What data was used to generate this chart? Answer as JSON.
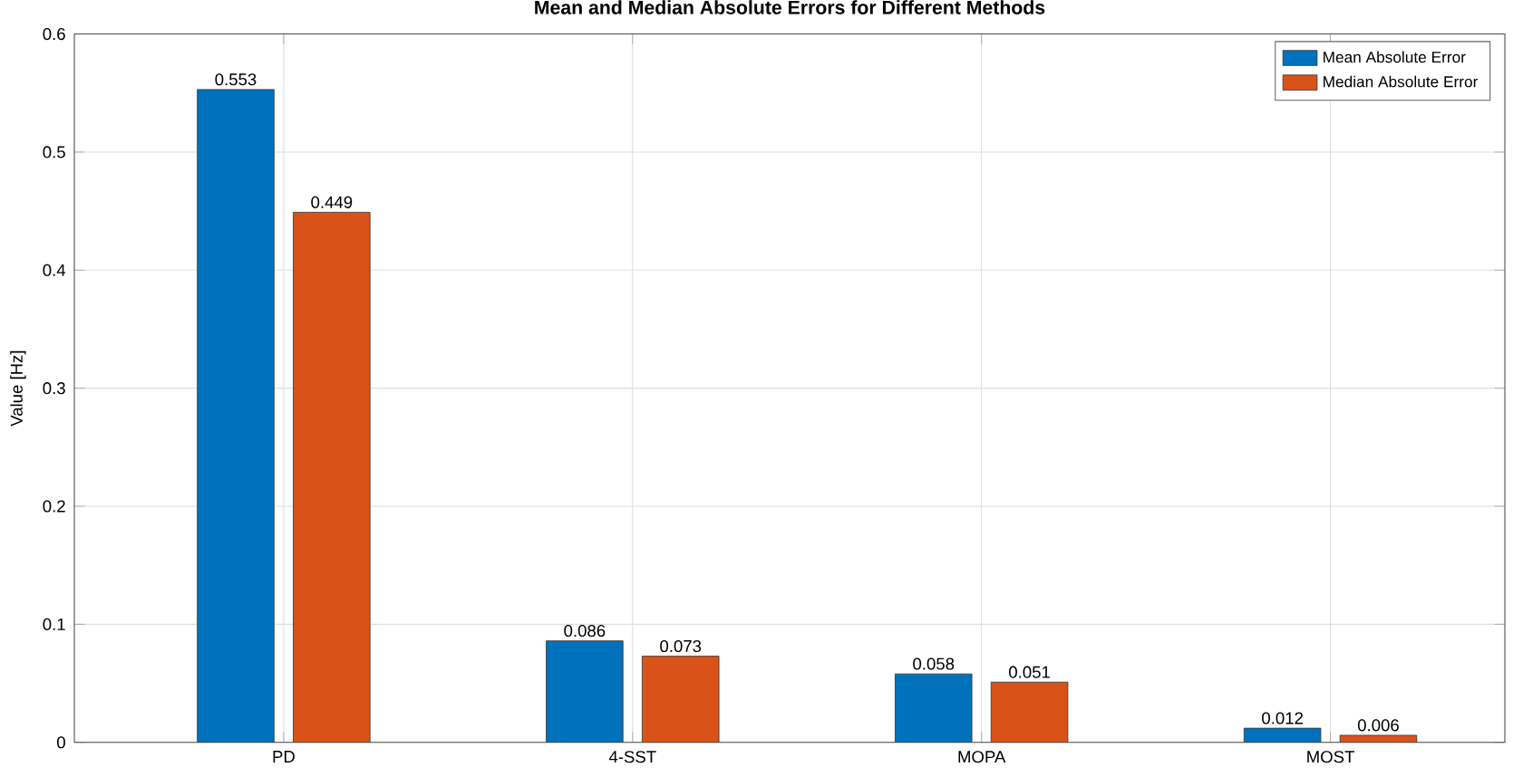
{
  "chart_data": {
    "type": "bar",
    "title": "Mean and Median Absolute Errors for Different Methods",
    "ylabel": "Value [Hz]",
    "categories": [
      "PD",
      "4-SST",
      "MOPA",
      "MOST"
    ],
    "series": [
      {
        "name": "Mean Absolute Error",
        "color": "#0072bd",
        "values": [
          0.553,
          0.086,
          0.058,
          0.012
        ]
      },
      {
        "name": "Median Absolute Error",
        "color": "#d95319",
        "values": [
          0.449,
          0.073,
          0.051,
          0.006
        ]
      }
    ],
    "ylim": [
      0,
      0.6
    ],
    "yticks": [
      0,
      0.1,
      0.2,
      0.3,
      0.4,
      0.5,
      0.6
    ],
    "grid": true,
    "legend": "top right",
    "data_labels": true
  }
}
